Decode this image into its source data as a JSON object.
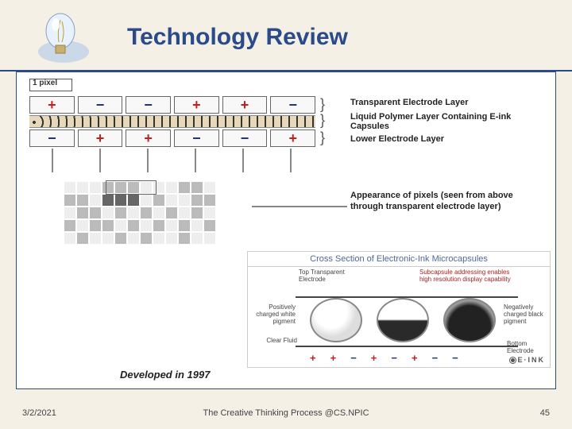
{
  "title": "Technology Review",
  "top_diagram": {
    "pixel_label": "1 pixel",
    "row1": [
      "+",
      "−",
      "−",
      "+",
      "+",
      "−"
    ],
    "row2": [
      "−",
      "+",
      "+",
      "−",
      "−",
      "+"
    ],
    "layer_labels": {
      "top": "Transparent Electrode Layer",
      "mid": "Liquid Polymer Layer Containing E-ink Capsules",
      "bot": "Lower Electrode Layer"
    },
    "appearance": "Appearance of pixels (seen from above through transparent electrode layer)",
    "grid_shades": [
      "l",
      "l",
      "l",
      "m",
      "m",
      "m",
      "l",
      "l",
      "l",
      "m",
      "m",
      "l",
      "m",
      "m",
      "l",
      "d",
      "d",
      "d",
      "l",
      "m",
      "l",
      "l",
      "m",
      "m",
      "l",
      "m",
      "m",
      "l",
      "m",
      "l",
      "m",
      "l",
      "m",
      "l",
      "m",
      "l",
      "m",
      "l",
      "m",
      "m",
      "l",
      "m",
      "l",
      "m",
      "l",
      "m",
      "l",
      "m",
      "l",
      "m",
      "l",
      "l",
      "m",
      "l",
      "m",
      "l",
      "l",
      "m",
      "l",
      "l"
    ]
  },
  "cross_section": {
    "title": "Cross Section of Electronic-Ink Microcapsules",
    "labels": {
      "top_left": "Top Transparent Electrode",
      "top_right": "Subcapsule addressing enables high resolution display capability",
      "left_mid": "Positively charged white pigment",
      "right_mid": "Negatively charged black pigment",
      "bot_left": "Clear Fluid",
      "bot_right": "Bottom Electrode"
    },
    "pm": [
      "+",
      "+",
      "−",
      "+",
      "−",
      "+",
      "−",
      "−"
    ],
    "logo": "E·INK"
  },
  "developed": "Developed in 1997",
  "footer": {
    "date": "3/2/2021",
    "source": "The Creative Thinking Process @CS.NPIC",
    "page": "45"
  },
  "colors": {
    "title": "#2a4a8a",
    "pos": "#c02020",
    "neg": "#203080",
    "bg": "#f5f0e6"
  }
}
